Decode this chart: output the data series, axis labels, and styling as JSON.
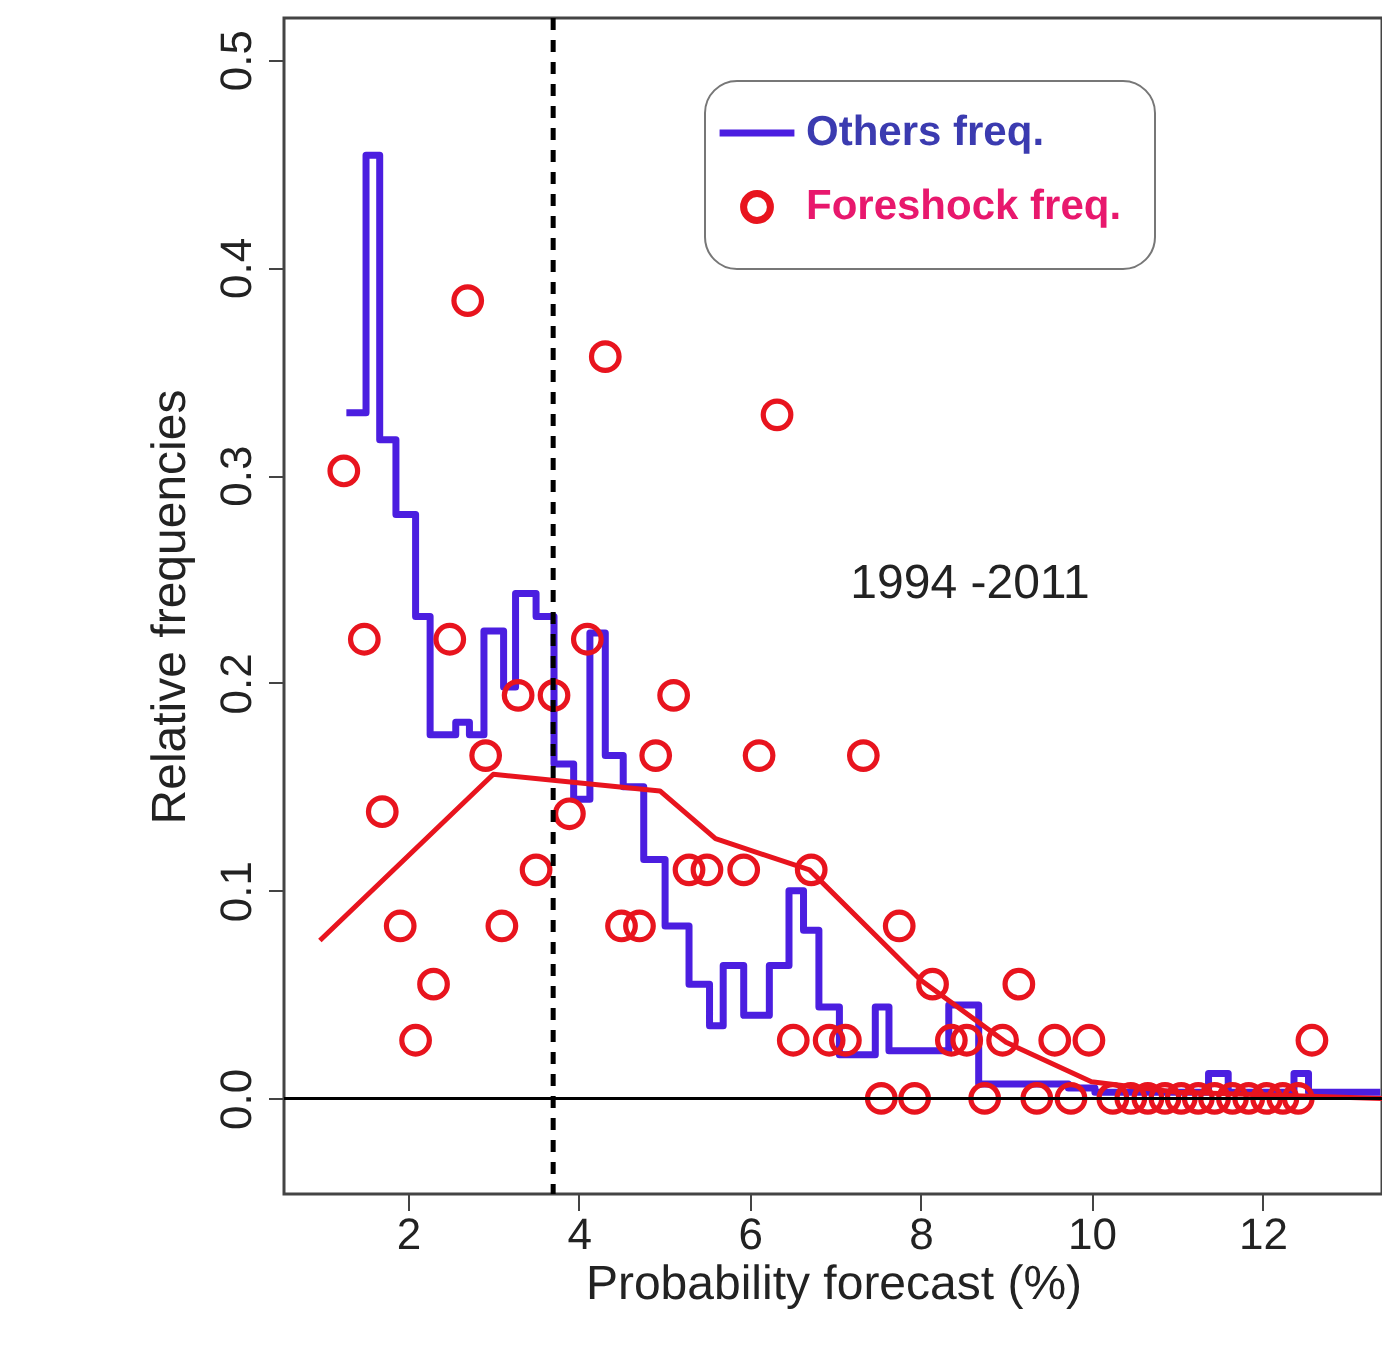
{
  "chart_data": {
    "type": "scatter",
    "xlabel": "Probability forecast (%)",
    "ylabel": "Relative frequencies",
    "xlim": [
      0.55,
      13.4
    ],
    "ylim": [
      -0.046,
      0.52
    ],
    "xticks": [
      2,
      4,
      6,
      8,
      10,
      12
    ],
    "yticks": [
      {
        "value": 0,
        "label": "0.0"
      },
      0.1,
      0.2,
      0.3,
      0.4,
      0.5
    ],
    "legend": "top right",
    "annotations": [
      "1994 -2011"
    ],
    "ref_lines": [
      {
        "axis": "x",
        "value": 3.7,
        "line_style": "dashed",
        "color": "#000000"
      },
      {
        "axis": "y",
        "value": 0,
        "color": "#000000"
      }
    ],
    "series": [
      {
        "name": "Others freq.",
        "type": "step",
        "color": "#4b1ee0",
        "line_style": "solid",
        "x": [
          1.28,
          1.51,
          1.67,
          1.86,
          2.09,
          2.26,
          2.56,
          2.72,
          2.89,
          3.12,
          3.26,
          3.5,
          3.71,
          3.94,
          4.13,
          4.31,
          4.52,
          4.76,
          5.01,
          5.29,
          5.53,
          5.69,
          5.93,
          6.23,
          6.46,
          6.63,
          6.81,
          7.05,
          7.47,
          7.63,
          8.33,
          8.68,
          9.73,
          10.04,
          11.37,
          11.6,
          12.37,
          12.54,
          13.38
        ],
        "values": [
          0.33,
          0.454,
          0.317,
          0.281,
          0.232,
          0.175,
          0.181,
          0.175,
          0.225,
          0.198,
          0.243,
          0.232,
          0.161,
          0.144,
          0.224,
          0.165,
          0.15,
          0.115,
          0.083,
          0.055,
          0.035,
          0.064,
          0.04,
          0.064,
          0.1,
          0.081,
          0.044,
          0.021,
          0.044,
          0.023,
          0.045,
          0.007,
          0.005,
          0.003,
          0.012,
          0.003,
          0.012,
          0.003,
          0.003
        ]
      },
      {
        "name": "Foreshock freq.",
        "marker": "circle",
        "color": "#e8141e",
        "x": [
          1.25,
          1.49,
          1.7,
          1.91,
          2.09,
          2.3,
          2.49,
          2.7,
          2.91,
          3.1,
          3.29,
          3.5,
          3.71,
          3.89,
          4.1,
          4.31,
          4.5,
          4.71,
          4.9,
          5.11,
          5.29,
          5.5,
          5.93,
          6.11,
          6.32,
          6.51,
          6.72,
          6.93,
          7.12,
          7.33,
          7.54,
          7.75,
          7.93,
          8.14,
          8.36,
          8.54,
          8.75,
          8.96,
          9.15,
          9.36,
          9.57,
          9.76,
          9.97,
          10.25,
          10.46,
          10.66,
          10.86,
          11.05,
          11.25,
          11.44,
          11.65,
          11.84,
          12.05,
          12.24,
          12.42,
          12.58
        ],
        "values": [
          0.302,
          0.221,
          0.138,
          0.083,
          0.028,
          0.055,
          0.221,
          0.384,
          0.165,
          0.083,
          0.194,
          0.11,
          0.194,
          0.137,
          0.221,
          0.357,
          0.083,
          0.083,
          0.165,
          0.194,
          0.11,
          0.11,
          0.11,
          0.165,
          0.329,
          0.028,
          0.11,
          0.028,
          0.028,
          0.165,
          0,
          0.083,
          0,
          0.055,
          0.028,
          0.028,
          0,
          0.028,
          0.055,
          0,
          0.028,
          0,
          0.028,
          0,
          0,
          0,
          0,
          0,
          0,
          0,
          0,
          0,
          0,
          0,
          0,
          0.028
        ]
      },
      {
        "type": "line",
        "color": "#e8141e",
        "line_style": "solid",
        "x": [
          0.97,
          3.0,
          4.95,
          5.6,
          6.7,
          8.0,
          9.0,
          10.0,
          11.0,
          13.4
        ],
        "values": [
          0.076,
          0.156,
          0.148,
          0.125,
          0.11,
          0.057,
          0.027,
          0.008,
          0.003,
          0.0
        ]
      }
    ]
  }
}
